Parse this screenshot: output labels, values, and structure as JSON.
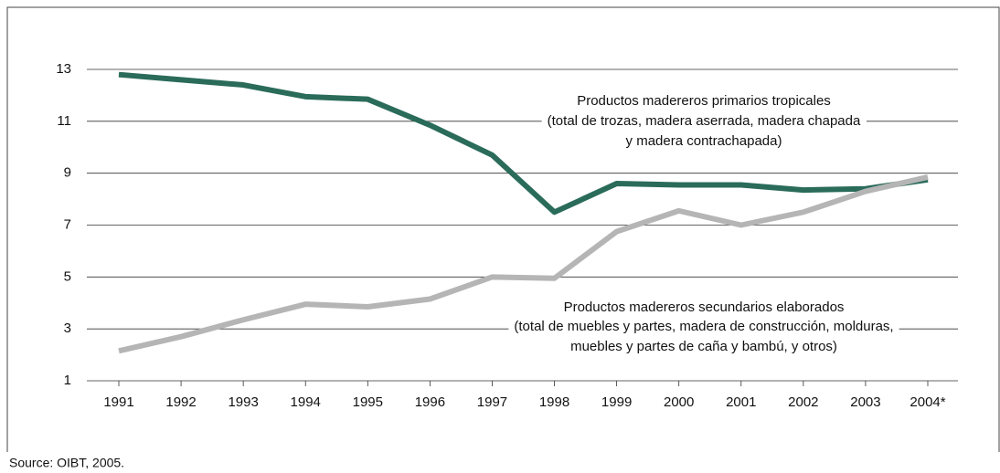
{
  "chart_data": {
    "type": "line",
    "categories": [
      "1991",
      "1992",
      "1993",
      "1994",
      "1995",
      "1996",
      "1997",
      "1998",
      "1999",
      "2000",
      "2001",
      "2002",
      "2003",
      "2004*"
    ],
    "series": [
      {
        "name": "primary",
        "color": "#2a6b5a",
        "values": [
          12.8,
          12.6,
          12.4,
          11.95,
          11.85,
          10.85,
          9.7,
          7.5,
          8.6,
          8.55,
          8.55,
          8.35,
          8.4,
          8.75
        ]
      },
      {
        "name": "secondary",
        "color": "#b5b5b5",
        "values": [
          2.15,
          2.7,
          3.35,
          3.95,
          3.85,
          4.15,
          5.0,
          4.95,
          6.75,
          7.55,
          7.0,
          7.5,
          8.3,
          8.85
        ]
      }
    ],
    "annotations": [
      [
        "Productos madereros primarios tropicales",
        "(total de trozas, madera aserrada, madera chapada",
        "y madera contrachapada)"
      ],
      [
        "Productos madereros secundarios elaborados",
        "(total de muebles y partes, madera de construcción, molduras,",
        "muebles y partes de caña y bambú, y otros)"
      ]
    ],
    "ylim": [
      1,
      13
    ],
    "yticks": [
      1,
      3,
      5,
      7,
      9,
      11,
      13
    ],
    "grid": true,
    "source": "Source: OIBT, 2005."
  }
}
